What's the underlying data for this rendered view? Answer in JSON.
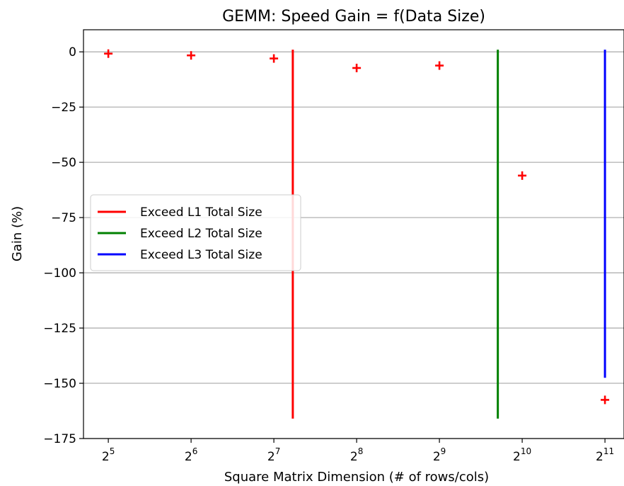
{
  "chart_data": {
    "type": "scatter",
    "title": "GEMM: Speed Gain = f(Data Size)",
    "xlabel": "Square Matrix Dimension (# of rows/cols)",
    "ylabel": "Gain (%)",
    "x_scale": "log2",
    "xlim_exp": [
      4.7,
      11.23
    ],
    "ylim": [
      -175,
      10
    ],
    "grid": "y",
    "y_ticks": [
      {
        "value": 0,
        "label": "0"
      },
      {
        "value": -25,
        "label": "−25"
      },
      {
        "value": -50,
        "label": "−50"
      },
      {
        "value": -75,
        "label": "−75"
      },
      {
        "value": -100,
        "label": "−100"
      },
      {
        "value": -125,
        "label": "−125"
      },
      {
        "value": -150,
        "label": "−150"
      },
      {
        "value": -175,
        "label": "−175"
      }
    ],
    "x_ticks": [
      {
        "exp": 5,
        "base": "2",
        "power": "5"
      },
      {
        "exp": 6,
        "base": "2",
        "power": "6"
      },
      {
        "exp": 7,
        "base": "2",
        "power": "7"
      },
      {
        "exp": 8,
        "base": "2",
        "power": "8"
      },
      {
        "exp": 9,
        "base": "2",
        "power": "9"
      },
      {
        "exp": 10,
        "base": "2",
        "power": "10"
      },
      {
        "exp": 11,
        "base": "2",
        "power": "11"
      }
    ],
    "points": {
      "color": "#ff0000",
      "marker": "plus",
      "x": [
        32,
        64,
        128,
        256,
        512,
        1024,
        2048
      ],
      "y": [
        -0.8,
        -1.6,
        -3.0,
        -7.3,
        -6.2,
        -56.0,
        -157.5
      ]
    },
    "vlines": [
      {
        "name": "Exceed L1 Total Size",
        "color": "#ff0000",
        "x": 150,
        "ymin": -166,
        "ymax": 1
      },
      {
        "name": "Exceed L2 Total Size",
        "color": "#008000",
        "x": 835,
        "ymin": -166,
        "ymax": 1
      },
      {
        "name": "Exceed L3 Total Size",
        "color": "#0000ff",
        "x": 2048,
        "ymin": -147.5,
        "ymax": 1
      }
    ],
    "legend": {
      "placement": "center-left",
      "entries": [
        "Exceed L1 Total Size",
        "Exceed L2 Total Size",
        "Exceed L3 Total Size"
      ]
    }
  }
}
